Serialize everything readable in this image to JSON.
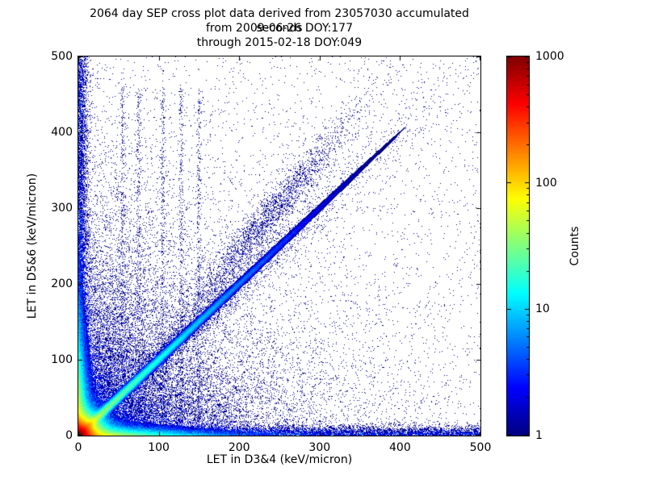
{
  "chart_data": {
    "type": "heatmap",
    "title": "2064 day SEP cross plot data derived from 23057030 accumulated seconds",
    "subtitle1": "from 2009-06-26 DOY:177",
    "subtitle2": "through 2015-02-18 DOY:049",
    "xlabel": "LET in D3&4 (keV/micron)",
    "ylabel": "LET in D5&6 (keV/micron)",
    "xlim": [
      0,
      500
    ],
    "ylim": [
      0,
      500
    ],
    "xticks": [
      0,
      100,
      200,
      300,
      400,
      500
    ],
    "yticks": [
      0,
      100,
      200,
      300,
      400,
      500
    ],
    "grid": false,
    "colorbar": {
      "label": "Counts",
      "scale": "log",
      "min": 1,
      "max": 1000,
      "ticks": [
        1000,
        100,
        10,
        1
      ],
      "colormap": "jet"
    },
    "notes": "2D log-density cross plot: intense red/orange hotspot at origin, bright diagonal y=x track fading by ~300, dense blue bands hugging both axes out to 500, diffuse blue scatter over lower-left, secondary diagonal cluster near (235,290), faint vertical streaks near x=55-150.",
    "features": [
      {
        "name": "origin-hotspot",
        "kind": "analytic-exp",
        "amplitude": 1500,
        "scale": 7,
        "power": 1.0
      },
      {
        "name": "x-axis-hot-tail",
        "kind": "analytic-tail",
        "axis": "x",
        "amplitude": 120,
        "width": 5,
        "length": 50
      },
      {
        "name": "y-axis-hot-tail",
        "kind": "analytic-tail",
        "axis": "y",
        "amplitude": 120,
        "width": 5,
        "length": 50
      },
      {
        "name": "main-diagonal-track",
        "kind": "analytic-diag",
        "amplitude": 35,
        "width": 4,
        "length": 150
      },
      {
        "name": "diffuse-cloud",
        "kind": "points-exp2",
        "count": 26000,
        "scale_x": 85,
        "scale_y": 85
      },
      {
        "name": "uniform-background",
        "kind": "points-uniform",
        "count": 3000
      },
      {
        "name": "x-axis-band",
        "kind": "points-band-x",
        "count": 9000,
        "sigma": 6,
        "power": 1.3
      },
      {
        "name": "y-axis-band",
        "kind": "points-band-y",
        "count": 7000,
        "sigma": 6,
        "power": 1.3
      },
      {
        "name": "diagonal-scatter",
        "kind": "points-diag",
        "count": 7000,
        "scale": 110,
        "spread0": 2,
        "spread_rate": 0.06
      },
      {
        "name": "upper-diagonal-cluster",
        "kind": "points-cluster-line",
        "count": 2600,
        "cx": 235,
        "sx": 55,
        "slope": 1.22,
        "sigma": 16
      },
      {
        "name": "vertical-streaks",
        "kind": "points-streaks",
        "xs": [
          55,
          75,
          105,
          128,
          150
        ],
        "count_each": 350,
        "ymax": 460,
        "sigma": 1.5
      }
    ]
  }
}
